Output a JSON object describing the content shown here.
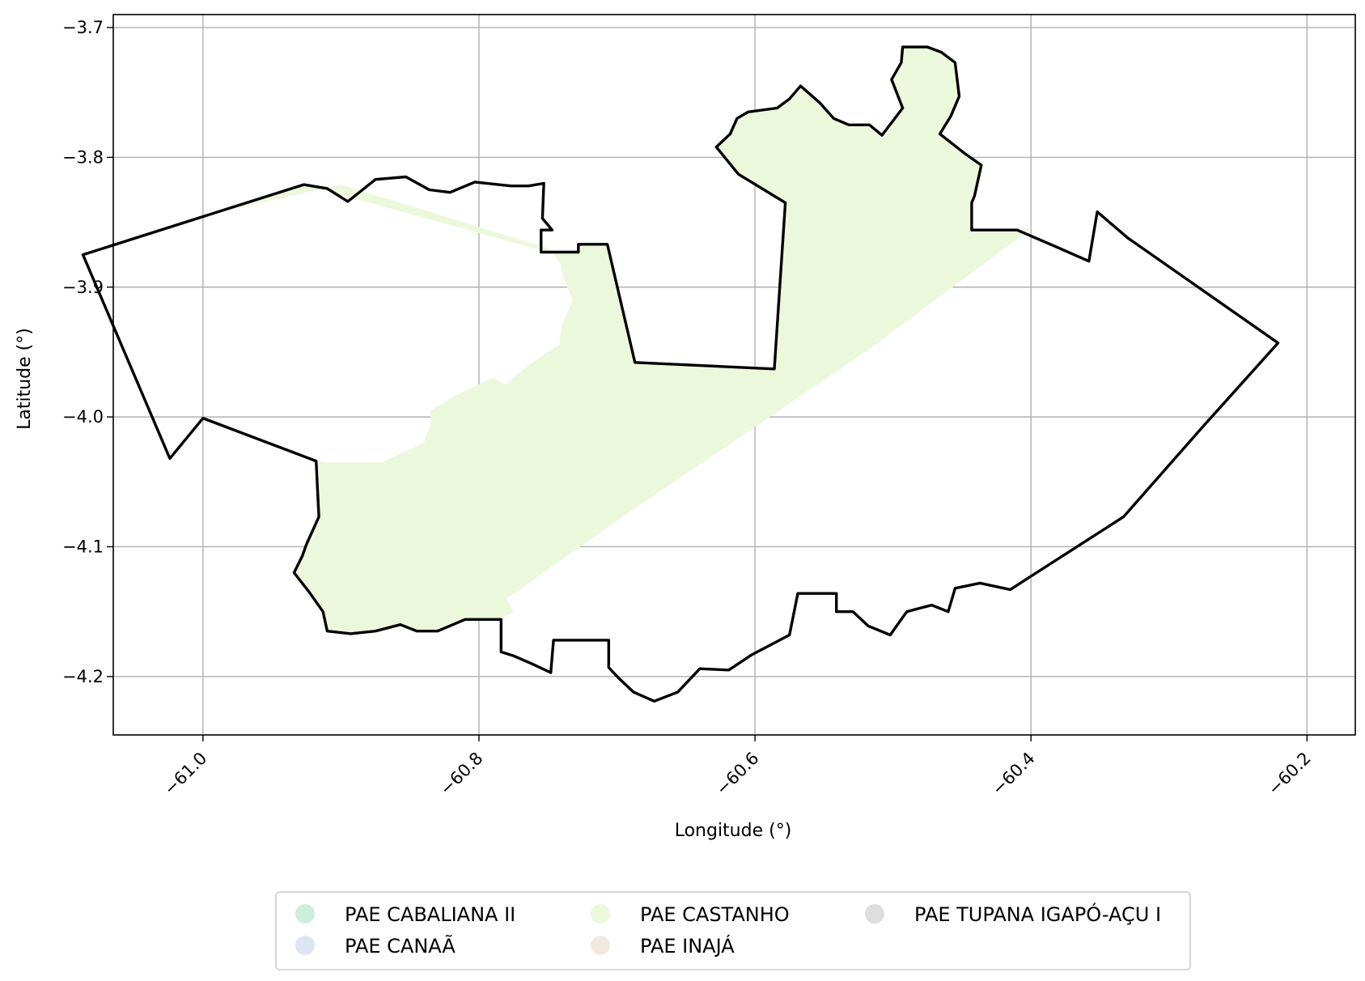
{
  "chart_data": {
    "type": "map",
    "xlabel": "Longitude (°)",
    "ylabel": "Latitude (°)",
    "xlim": [
      -61.065,
      -60.165
    ],
    "ylim": [
      -4.245,
      -3.69
    ],
    "xticks": [
      {
        "value": -61.0,
        "label": "−61.0"
      },
      {
        "value": -60.8,
        "label": "−60.8"
      },
      {
        "value": -60.6,
        "label": "−60.6"
      },
      {
        "value": -60.4,
        "label": "−60.4"
      },
      {
        "value": -60.2,
        "label": "−60.2"
      }
    ],
    "yticks": [
      {
        "value": -3.7,
        "label": "−3.7"
      },
      {
        "value": -3.8,
        "label": "−3.8"
      },
      {
        "value": -3.9,
        "label": "−3.9"
      },
      {
        "value": -4.0,
        "label": "−4.0"
      },
      {
        "value": -4.1,
        "label": "−4.1"
      },
      {
        "value": -4.2,
        "label": "−4.2"
      }
    ],
    "grid": true,
    "legend_position": "bottom-center",
    "legend": [
      {
        "label": "PAE CABALIANA II",
        "color": "#cdeedd"
      },
      {
        "label": "PAE CANAÃ",
        "color": "#dde4f2"
      },
      {
        "label": "PAE CASTANHO",
        "color": "#ecf8dc"
      },
      {
        "label": "PAE INAJÁ",
        "color": "#f3eadf"
      },
      {
        "label": "PAE TUPANA IGAPÓ-AÇU I",
        "color": "#dedede"
      }
    ],
    "boundary": [
      [
        -61.087,
        -3.875
      ],
      [
        -60.927,
        -3.821
      ],
      [
        -60.91,
        -3.824
      ],
      [
        -60.895,
        -3.834
      ],
      [
        -60.875,
        -3.817
      ],
      [
        -60.853,
        -3.815
      ],
      [
        -60.836,
        -3.825
      ],
      [
        -60.821,
        -3.827
      ],
      [
        -60.803,
        -3.819
      ],
      [
        -60.777,
        -3.822
      ],
      [
        -60.764,
        -3.822
      ],
      [
        -60.753,
        -3.82
      ],
      [
        -60.754,
        -3.847
      ],
      [
        -60.747,
        -3.856
      ],
      [
        -60.755,
        -3.856
      ],
      [
        -60.755,
        -3.873
      ],
      [
        -60.728,
        -3.873
      ],
      [
        -60.728,
        -3.867
      ],
      [
        -60.707,
        -3.867
      ],
      [
        -60.687,
        -3.958
      ],
      [
        -60.586,
        -3.963
      ],
      [
        -60.578,
        -3.835
      ],
      [
        -60.612,
        -3.813
      ],
      [
        -60.628,
        -3.792
      ],
      [
        -60.618,
        -3.782
      ],
      [
        -60.613,
        -3.77
      ],
      [
        -60.605,
        -3.765
      ],
      [
        -60.584,
        -3.762
      ],
      [
        -60.575,
        -3.755
      ],
      [
        -60.567,
        -3.745
      ],
      [
        -60.553,
        -3.758
      ],
      [
        -60.543,
        -3.77
      ],
      [
        -60.532,
        -3.775
      ],
      [
        -60.517,
        -3.775
      ],
      [
        -60.508,
        -3.783
      ],
      [
        -60.493,
        -3.762
      ],
      [
        -60.501,
        -3.74
      ],
      [
        -60.494,
        -3.727
      ],
      [
        -60.493,
        -3.715
      ],
      [
        -60.475,
        -3.715
      ],
      [
        -60.465,
        -3.719
      ],
      [
        -60.455,
        -3.727
      ],
      [
        -60.452,
        -3.753
      ],
      [
        -60.458,
        -3.768
      ],
      [
        -60.466,
        -3.782
      ],
      [
        -60.448,
        -3.797
      ],
      [
        -60.436,
        -3.806
      ],
      [
        -60.441,
        -3.83
      ],
      [
        -60.443,
        -3.835
      ],
      [
        -60.443,
        -3.856
      ],
      [
        -60.41,
        -3.856
      ],
      [
        -60.386,
        -3.867
      ],
      [
        -60.358,
        -3.88
      ],
      [
        -60.352,
        -3.842
      ],
      [
        -60.33,
        -3.862
      ],
      [
        -60.221,
        -3.943
      ],
      [
        -60.275,
        -4.007
      ],
      [
        -60.333,
        -4.077
      ],
      [
        -60.415,
        -4.133
      ],
      [
        -60.437,
        -4.128
      ],
      [
        -60.455,
        -4.132
      ],
      [
        -60.46,
        -4.15
      ],
      [
        -60.472,
        -4.145
      ],
      [
        -60.49,
        -4.15
      ],
      [
        -60.502,
        -4.168
      ],
      [
        -60.518,
        -4.161
      ],
      [
        -60.529,
        -4.15
      ],
      [
        -60.541,
        -4.15
      ],
      [
        -60.541,
        -4.136
      ],
      [
        -60.569,
        -4.136
      ],
      [
        -60.575,
        -4.168
      ],
      [
        -60.602,
        -4.183
      ],
      [
        -60.619,
        -4.195
      ],
      [
        -60.64,
        -4.194
      ],
      [
        -60.656,
        -4.212
      ],
      [
        -60.673,
        -4.219
      ],
      [
        -60.688,
        -4.212
      ],
      [
        -60.699,
        -4.201
      ],
      [
        -60.706,
        -4.193
      ],
      [
        -60.706,
        -4.172
      ],
      [
        -60.746,
        -4.172
      ],
      [
        -60.748,
        -4.197
      ],
      [
        -60.762,
        -4.19
      ],
      [
        -60.775,
        -4.184
      ],
      [
        -60.784,
        -4.181
      ],
      [
        -60.784,
        -4.156
      ],
      [
        -60.81,
        -4.156
      ],
      [
        -60.83,
        -4.165
      ],
      [
        -60.845,
        -4.165
      ],
      [
        -60.857,
        -4.16
      ],
      [
        -60.875,
        -4.165
      ],
      [
        -60.893,
        -4.167
      ],
      [
        -60.91,
        -4.165
      ],
      [
        -60.913,
        -4.15
      ],
      [
        -60.923,
        -4.135
      ],
      [
        -60.934,
        -4.12
      ],
      [
        -60.928,
        -4.107
      ],
      [
        -60.925,
        -4.098
      ],
      [
        -60.916,
        -4.077
      ],
      [
        -60.918,
        -4.034
      ],
      [
        -61.0,
        -4.001
      ],
      [
        -61.024,
        -4.032
      ],
      [
        -61.087,
        -3.875
      ]
    ],
    "castanho_area": [
      [
        -60.927,
        -3.821
      ],
      [
        -61.0,
        -3.845
      ],
      [
        -60.925,
        -3.827
      ],
      [
        -60.9,
        -3.821
      ],
      [
        -60.75,
        -3.87
      ],
      [
        -60.742,
        -3.88
      ],
      [
        -60.738,
        -3.895
      ],
      [
        -60.732,
        -3.91
      ],
      [
        -60.74,
        -3.93
      ],
      [
        -60.742,
        -3.945
      ],
      [
        -60.75,
        -3.95
      ],
      [
        -60.77,
        -3.965
      ],
      [
        -60.78,
        -3.975
      ],
      [
        -60.79,
        -3.97
      ],
      [
        -60.8,
        -3.975
      ],
      [
        -60.81,
        -3.98
      ],
      [
        -60.82,
        -3.985
      ],
      [
        -60.835,
        -3.995
      ],
      [
        -60.835,
        -4.005
      ],
      [
        -60.84,
        -4.02
      ],
      [
        -60.85,
        -4.025
      ],
      [
        -60.86,
        -4.03
      ],
      [
        -60.87,
        -4.035
      ],
      [
        -60.91,
        -4.035
      ],
      [
        -60.918,
        -4.034
      ],
      [
        -60.916,
        -4.077
      ],
      [
        -60.925,
        -4.098
      ],
      [
        -60.928,
        -4.107
      ],
      [
        -60.934,
        -4.12
      ],
      [
        -60.923,
        -4.135
      ],
      [
        -60.913,
        -4.15
      ],
      [
        -60.91,
        -4.165
      ],
      [
        -60.893,
        -4.167
      ],
      [
        -60.875,
        -4.165
      ],
      [
        -60.857,
        -4.16
      ],
      [
        -60.845,
        -4.165
      ],
      [
        -60.83,
        -4.165
      ],
      [
        -60.81,
        -4.156
      ],
      [
        -60.784,
        -4.156
      ],
      [
        -60.775,
        -4.15
      ],
      [
        -60.78,
        -4.14
      ],
      [
        -60.7,
        -4.08
      ],
      [
        -60.52,
        -3.95
      ],
      [
        -60.4,
        -3.855
      ],
      [
        -60.443,
        -3.856
      ],
      [
        -60.443,
        -3.835
      ],
      [
        -60.441,
        -3.83
      ],
      [
        -60.436,
        -3.806
      ],
      [
        -60.448,
        -3.797
      ],
      [
        -60.466,
        -3.782
      ],
      [
        -60.458,
        -3.768
      ],
      [
        -60.452,
        -3.753
      ],
      [
        -60.455,
        -3.727
      ],
      [
        -60.465,
        -3.719
      ],
      [
        -60.475,
        -3.715
      ],
      [
        -60.493,
        -3.715
      ],
      [
        -60.494,
        -3.727
      ],
      [
        -60.501,
        -3.74
      ],
      [
        -60.493,
        -3.762
      ],
      [
        -60.508,
        -3.783
      ],
      [
        -60.517,
        -3.775
      ],
      [
        -60.532,
        -3.775
      ],
      [
        -60.543,
        -3.77
      ],
      [
        -60.553,
        -3.758
      ],
      [
        -60.567,
        -3.745
      ],
      [
        -60.575,
        -3.755
      ],
      [
        -60.584,
        -3.762
      ],
      [
        -60.605,
        -3.765
      ],
      [
        -60.613,
        -3.77
      ],
      [
        -60.618,
        -3.782
      ],
      [
        -60.628,
        -3.792
      ],
      [
        -60.612,
        -3.813
      ],
      [
        -60.578,
        -3.835
      ],
      [
        -60.586,
        -3.963
      ],
      [
        -60.687,
        -3.958
      ],
      [
        -60.707,
        -3.867
      ],
      [
        -60.728,
        -3.867
      ],
      [
        -60.728,
        -3.873
      ],
      [
        -60.75,
        -3.873
      ]
    ]
  }
}
